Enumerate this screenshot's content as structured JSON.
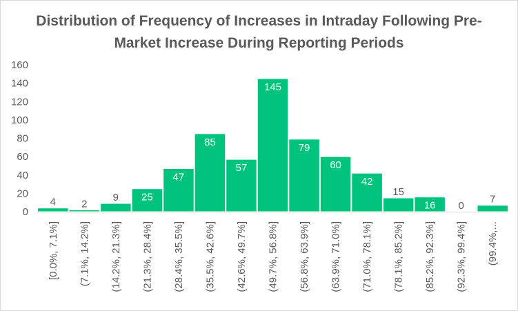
{
  "chart_data": {
    "type": "bar",
    "title": "Distribution of Frequency of Increases in Intraday Following Pre-Market Increase During Reporting Periods",
    "title_lines": [
      "Distribution of Frequency of Increases in Intraday Following Pre-",
      "Market Increase During Reporting Periods"
    ],
    "xlabel": "",
    "ylabel": "",
    "categories": [
      "[0.0%, 7.1%]",
      "(7.1%, 14.2%]",
      "(14.2%, 21.3%]",
      "(21.3%, 28.4%]",
      "(28.4%, 35.5%]",
      "(35.5%, 42.6%]",
      "(42.6%, 49.7%]",
      "(49.7%, 56.8%]",
      "(56.8%, 63.9%]",
      "(63.9%, 71.0%]",
      "(71.0%, 78.1%]",
      "(78.1%, 85.2%]",
      "(85.2%, 92.3%]",
      "(92.3%, 99.4%]",
      "(99.4%,..."
    ],
    "values": [
      4,
      2,
      9,
      25,
      47,
      85,
      57,
      145,
      79,
      60,
      42,
      15,
      16,
      0,
      7
    ],
    "data_labels": [
      "4",
      "2",
      "9",
      "25",
      "47",
      "85",
      "57",
      "145",
      "79",
      "60",
      "42",
      "15",
      "16",
      "0",
      "7"
    ],
    "yticks": [
      "0",
      "20",
      "40",
      "60",
      "80",
      "100",
      "120",
      "140",
      "160"
    ],
    "ylim": [
      0,
      160
    ],
    "grid": false,
    "legend": "none",
    "bar_color": "#00c47e"
  }
}
